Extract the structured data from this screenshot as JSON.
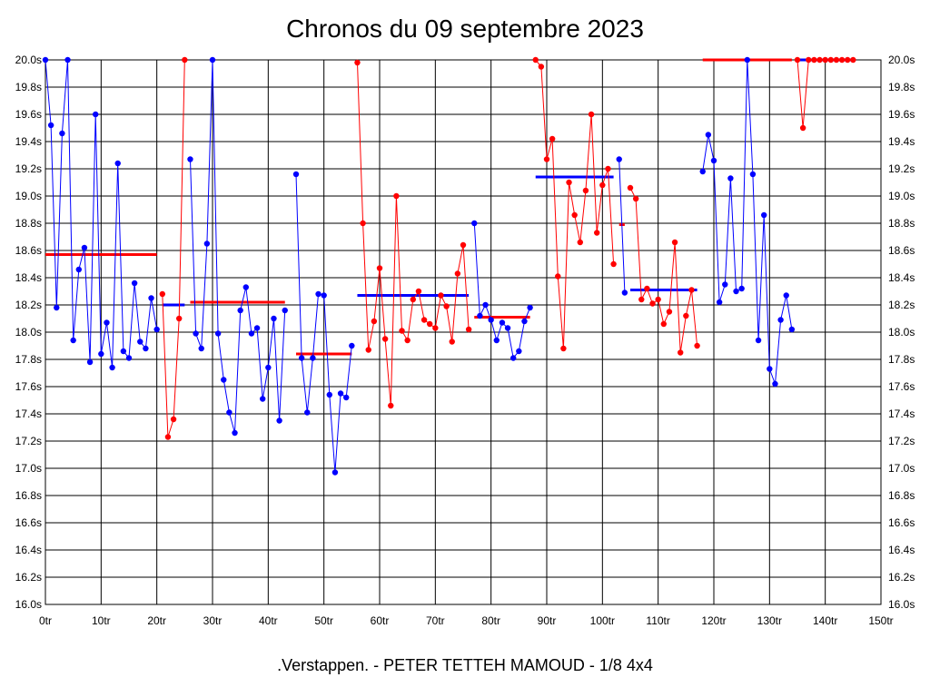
{
  "title": "Chronos du 09 septembre 2023",
  "footer": ".Verstappen. - PETER TETTEH MAMOUD - 1/8 4x4",
  "colors": {
    "blue": "#0000ff",
    "red": "#ff0000",
    "grid": "#000000",
    "frame": "#000000"
  },
  "chart_data": {
    "type": "line",
    "title": "Chronos du 09 septembre 2023",
    "xlabel": "",
    "ylabel": "",
    "xlim": [
      0,
      150
    ],
    "ylim": [
      16.0,
      20.0
    ],
    "grid": true,
    "x_ticks": [
      "0tr",
      "10tr",
      "20tr",
      "30tr",
      "40tr",
      "50tr",
      "60tr",
      "70tr",
      "80tr",
      "90tr",
      "100tr",
      "110tr",
      "120tr",
      "130tr",
      "140tr",
      "150tr"
    ],
    "y_ticks": [
      "20.0s",
      "19.8s",
      "19.6s",
      "19.4s",
      "19.2s",
      "19.0s",
      "18.8s",
      "18.6s",
      "18.4s",
      "18.2s",
      "18.0s",
      "17.8s",
      "17.6s",
      "17.4s",
      "17.2s",
      "17.0s",
      "16.8s",
      "16.6s",
      "16.4s",
      "16.2s",
      "16.0s"
    ],
    "segments": [
      {
        "color": "blue",
        "points": [
          [
            0,
            20.0
          ],
          [
            1,
            19.52
          ],
          [
            2,
            18.18
          ],
          [
            3,
            19.46
          ],
          [
            4,
            20.0
          ],
          [
            5,
            17.94
          ],
          [
            6,
            18.46
          ],
          [
            7,
            18.62
          ],
          [
            8,
            17.78
          ],
          [
            9,
            19.6
          ],
          [
            10,
            17.84
          ],
          [
            11,
            18.07
          ],
          [
            12,
            17.74
          ],
          [
            13,
            19.24
          ],
          [
            14,
            17.86
          ],
          [
            15,
            17.81
          ],
          [
            16,
            18.36
          ],
          [
            17,
            17.93
          ],
          [
            18,
            17.88
          ],
          [
            19,
            18.25
          ],
          [
            20,
            18.02
          ]
        ]
      },
      {
        "color": "red",
        "points": [
          [
            21,
            18.28
          ],
          [
            22,
            17.23
          ],
          [
            23,
            17.36
          ],
          [
            24,
            18.1
          ],
          [
            25,
            20.0
          ]
        ]
      },
      {
        "color": "blue",
        "points": [
          [
            26,
            19.27
          ],
          [
            27,
            17.99
          ],
          [
            28,
            17.88
          ],
          [
            29,
            18.65
          ],
          [
            30,
            20.0
          ],
          [
            31,
            17.99
          ],
          [
            32,
            17.65
          ],
          [
            33,
            17.41
          ],
          [
            34,
            17.26
          ],
          [
            35,
            18.16
          ],
          [
            36,
            18.33
          ],
          [
            37,
            17.99
          ],
          [
            38,
            18.03
          ],
          [
            39,
            17.51
          ],
          [
            40,
            17.74
          ],
          [
            41,
            18.1
          ],
          [
            42,
            17.35
          ],
          [
            43,
            18.16
          ]
        ]
      },
      {
        "color": "blue",
        "points": [
          [
            45,
            19.16
          ],
          [
            46,
            17.81
          ],
          [
            47,
            17.41
          ],
          [
            48,
            17.81
          ],
          [
            49,
            18.28
          ],
          [
            50,
            18.27
          ],
          [
            51,
            17.54
          ],
          [
            52,
            16.97
          ],
          [
            53,
            17.55
          ],
          [
            54,
            17.52
          ],
          [
            55,
            17.9
          ]
        ]
      },
      {
        "color": "red",
        "points": [
          [
            56,
            19.98
          ],
          [
            57,
            18.8
          ],
          [
            58,
            17.87
          ],
          [
            59,
            18.08
          ],
          [
            60,
            18.47
          ],
          [
            61,
            17.95
          ],
          [
            62,
            17.46
          ],
          [
            63,
            19.0
          ],
          [
            64,
            18.01
          ],
          [
            65,
            17.94
          ],
          [
            66,
            18.24
          ],
          [
            67,
            18.3
          ],
          [
            68,
            18.09
          ],
          [
            69,
            18.06
          ],
          [
            70,
            18.03
          ],
          [
            71,
            18.27
          ],
          [
            72,
            18.19
          ],
          [
            73,
            17.93
          ],
          [
            74,
            18.43
          ],
          [
            75,
            18.64
          ],
          [
            76,
            18.02
          ]
        ]
      },
      {
        "color": "blue",
        "points": [
          [
            77,
            18.8
          ],
          [
            78,
            18.12
          ],
          [
            79,
            18.2
          ],
          [
            80,
            18.09
          ],
          [
            81,
            17.94
          ],
          [
            82,
            18.07
          ],
          [
            83,
            18.03
          ],
          [
            84,
            17.81
          ],
          [
            85,
            17.86
          ],
          [
            86,
            18.08
          ],
          [
            87,
            18.18
          ]
        ]
      },
      {
        "color": "red",
        "points": [
          [
            88,
            20.0
          ],
          [
            89,
            19.95
          ],
          [
            90,
            19.27
          ],
          [
            91,
            19.42
          ],
          [
            92,
            18.41
          ],
          [
            93,
            17.88
          ],
          [
            94,
            19.1
          ],
          [
            95,
            18.86
          ],
          [
            96,
            18.66
          ],
          [
            97,
            19.04
          ],
          [
            98,
            19.6
          ],
          [
            99,
            18.73
          ],
          [
            100,
            19.08
          ],
          [
            101,
            19.2
          ],
          [
            102,
            18.5
          ]
        ]
      },
      {
        "color": "blue",
        "points": [
          [
            103,
            19.27
          ],
          [
            104,
            18.29
          ]
        ]
      },
      {
        "color": "red",
        "points": [
          [
            105,
            19.06
          ],
          [
            106,
            18.98
          ],
          [
            107,
            18.24
          ],
          [
            108,
            18.32
          ],
          [
            109,
            18.21
          ],
          [
            110,
            18.24
          ],
          [
            111,
            18.06
          ],
          [
            112,
            18.15
          ],
          [
            113,
            18.66
          ],
          [
            114,
            17.85
          ],
          [
            115,
            18.12
          ],
          [
            116,
            18.31
          ],
          [
            117,
            17.9
          ]
        ]
      },
      {
        "color": "blue",
        "points": [
          [
            118,
            19.18
          ],
          [
            119,
            19.45
          ],
          [
            120,
            19.26
          ],
          [
            121,
            18.22
          ],
          [
            122,
            18.35
          ],
          [
            123,
            19.13
          ],
          [
            124,
            18.3
          ],
          [
            125,
            18.32
          ],
          [
            126,
            20.0
          ],
          [
            127,
            19.16
          ],
          [
            128,
            17.94
          ],
          [
            129,
            18.86
          ],
          [
            130,
            17.73
          ],
          [
            131,
            17.62
          ],
          [
            132,
            18.09
          ],
          [
            133,
            18.27
          ],
          [
            134,
            18.02
          ]
        ]
      },
      {
        "color": "red",
        "points": [
          [
            135,
            20.0
          ],
          [
            136,
            19.5
          ],
          [
            137,
            20.0
          ],
          [
            138,
            20.0
          ],
          [
            139,
            20.0
          ],
          [
            140,
            20.0
          ],
          [
            141,
            20.0
          ],
          [
            142,
            20.0
          ],
          [
            143,
            20.0
          ],
          [
            144,
            20.0
          ],
          [
            145,
            20.0
          ]
        ]
      }
    ],
    "averages": [
      {
        "color": "red",
        "x": [
          0,
          20
        ],
        "y": 18.57
      },
      {
        "color": "blue",
        "x": [
          21,
          25
        ],
        "y": 18.2
      },
      {
        "color": "red",
        "x": [
          26,
          43
        ],
        "y": 18.22
      },
      {
        "color": "red",
        "x": [
          45,
          55
        ],
        "y": 17.84
      },
      {
        "color": "blue",
        "x": [
          56,
          76
        ],
        "y": 18.27
      },
      {
        "color": "red",
        "x": [
          77,
          87
        ],
        "y": 18.11
      },
      {
        "color": "blue",
        "x": [
          88,
          102
        ],
        "y": 19.14
      },
      {
        "color": "red",
        "x": [
          103,
          104
        ],
        "y": 18.79
      },
      {
        "color": "blue",
        "x": [
          105,
          117
        ],
        "y": 18.31
      },
      {
        "color": "red",
        "x": [
          118,
          134
        ],
        "y": 20.0
      },
      {
        "color": "blue",
        "x": [
          135,
          145
        ],
        "y": 20.0
      }
    ]
  }
}
